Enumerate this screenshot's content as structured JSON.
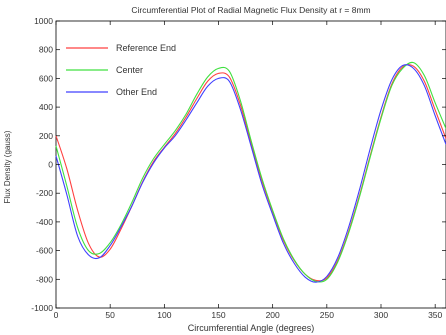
{
  "chart_data": {
    "type": "line",
    "title": "Circumferential Plot of Radial Magnetic Flux Density at r = 8mm",
    "xlabel": "Circumferential Angle (degrees)",
    "ylabel": "Flux Density (gauss)",
    "xlim": [
      0,
      360
    ],
    "ylim": [
      -1000,
      1000
    ],
    "xticks": [
      0,
      50,
      100,
      150,
      200,
      250,
      300,
      350
    ],
    "yticks": [
      -1000,
      -800,
      -600,
      -400,
      -200,
      0,
      200,
      400,
      600,
      800,
      1000
    ],
    "grid": false,
    "legend_position": "top-left",
    "x": [
      0,
      10,
      20,
      30,
      40,
      50,
      60,
      70,
      80,
      90,
      100,
      110,
      120,
      130,
      140,
      150,
      160,
      170,
      180,
      190,
      200,
      210,
      220,
      230,
      240,
      250,
      260,
      270,
      280,
      290,
      300,
      310,
      320,
      330,
      340,
      350,
      360
    ],
    "series": [
      {
        "name": "Reference End",
        "color": "#ff4040",
        "values": [
          200,
          -30,
          -320,
          -550,
          -645,
          -590,
          -450,
          -290,
          -120,
          20,
          120,
          215,
          330,
          460,
          580,
          635,
          610,
          420,
          150,
          -110,
          -330,
          -530,
          -670,
          -765,
          -808,
          -790,
          -670,
          -470,
          -220,
          60,
          330,
          560,
          680,
          685,
          580,
          380,
          180
        ]
      },
      {
        "name": "Center",
        "color": "#40e040",
        "values": [
          130,
          -150,
          -440,
          -600,
          -620,
          -545,
          -420,
          -265,
          -95,
          40,
          140,
          235,
          350,
          490,
          610,
          670,
          650,
          450,
          170,
          -95,
          -320,
          -520,
          -665,
          -765,
          -815,
          -800,
          -680,
          -480,
          -230,
          50,
          320,
          550,
          670,
          710,
          620,
          430,
          250
        ]
      },
      {
        "name": "Other End",
        "color": "#4040ff",
        "values": [
          60,
          -210,
          -500,
          -630,
          -650,
          -565,
          -435,
          -290,
          -125,
          10,
          115,
          200,
          310,
          430,
          545,
          600,
          580,
          390,
          130,
          -135,
          -350,
          -550,
          -690,
          -785,
          -820,
          -780,
          -650,
          -440,
          -180,
          110,
          380,
          590,
          690,
          670,
          550,
          340,
          140
        ]
      }
    ]
  }
}
